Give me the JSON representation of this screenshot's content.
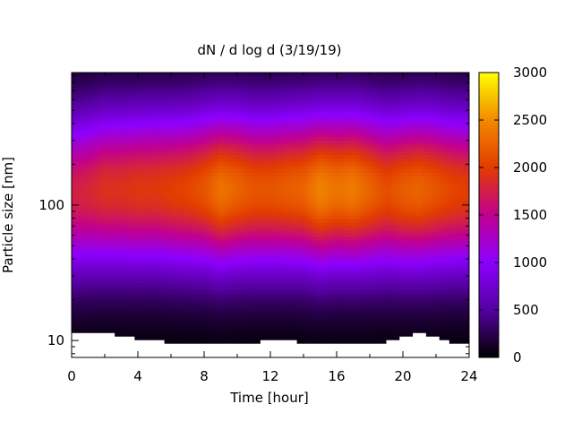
{
  "chart_data": {
    "type": "heatmap",
    "title": "dN / d log d (3/19/19)",
    "xlabel": "Time [hour]",
    "ylabel": "Particle size [nm]",
    "xlim": [
      0,
      24
    ],
    "ylim": [
      7.5,
      950
    ],
    "yscale": "log",
    "xticks": [
      0,
      4,
      8,
      12,
      16,
      20,
      24
    ],
    "yticks": [
      10,
      100
    ],
    "colorbar": {
      "range": [
        0,
        3000
      ],
      "ticks": [
        0,
        500,
        1000,
        1500,
        2000,
        2500,
        3000
      ],
      "palette": [
        "#000000",
        "#5500a0",
        "#8c00ff",
        "#c00090",
        "#e23c00",
        "#f28a00",
        "#ffff00"
      ]
    },
    "x_hours": [
      0,
      1,
      2,
      3,
      4,
      5,
      6,
      7,
      8,
      9,
      10,
      11,
      12,
      13,
      14,
      15,
      16,
      17,
      18,
      19,
      20,
      21,
      22,
      23,
      24
    ],
    "mode_diameter_nm": [
      120,
      125,
      130,
      130,
      130,
      132,
      130,
      130,
      132,
      130,
      132,
      130,
      130,
      132,
      132,
      130,
      132,
      132,
      130,
      128,
      128,
      130,
      130,
      128,
      128
    ],
    "peak_concentration": [
      1750,
      1800,
      1900,
      1900,
      1950,
      1950,
      2000,
      2050,
      2150,
      2350,
      2250,
      2150,
      2150,
      2200,
      2250,
      2450,
      2350,
      2400,
      2250,
      2100,
      2200,
      2250,
      2150,
      2050,
      2000
    ],
    "min_measured_diameter_nm": [
      11.8,
      11.1,
      11.6,
      10.8,
      10.4,
      10.4,
      9.6,
      9.6,
      9.6,
      9.6,
      9.6,
      9.6,
      10.2,
      10.2,
      9.6,
      9.6,
      9.8,
      9.8,
      9.8,
      9.8,
      10.6,
      11.6,
      10.6,
      9.6,
      9.6
    ]
  }
}
